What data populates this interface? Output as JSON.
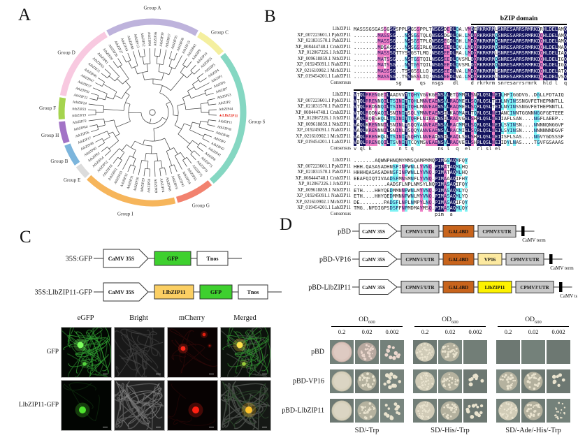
{
  "panels": {
    "a_label": "A",
    "b_label": "B",
    "c_label": "C",
    "d_label": "D"
  },
  "tree": {
    "highlight_leaf": "LlbZIP11",
    "highlight_color": "#e8291c",
    "groups": [
      {
        "name": "Group A",
        "color": "#beb3dc",
        "leaves": [
          "AtbZIP27",
          "AtbZIP14",
          "AtbZIP40",
          "AtbZIP13",
          "AtbZIP12",
          "AtbZIP66",
          "AtbZIP36",
          "AtbZIP39",
          "AtbZIP37",
          "AtbZIP35",
          "AtbZIP38",
          "AtbZIP15"
        ]
      },
      {
        "name": "Group C",
        "color": "#f4ef9f",
        "leaves": [
          "AtbZIP63",
          "AtbZIP9",
          "AtbZIP10",
          "AtbZIP25"
        ]
      },
      {
        "name": "Group S",
        "color": "#85d7c2",
        "leaves": [
          "AtbZIP5",
          "AtbZIP4",
          "AtbZIP1",
          "AtbZIP6",
          "AtbZIP7",
          "AtbZIP53",
          "AtbZIP2",
          "AtbZIP44",
          "LlbZIP11",
          "AtbZIP11",
          "AtbZIP78",
          "AtbZIP48",
          "AtbZIP3",
          "AtbZIP42",
          "AtbZIP43",
          "AtbZIP8",
          "AtbZIP73",
          "AtbZIP70"
        ]
      },
      {
        "name": "Group G",
        "color": "#f2826f",
        "leaves": [
          "AtbZIP75",
          "AtbZIP55",
          "AtbZIP54",
          "AtbZIP41",
          "AtbZIP16"
        ]
      },
      {
        "name": "Group I",
        "color": "#f6b55b",
        "leaves": [
          "AtbZIP68",
          "AtbZIP74",
          "AtbZIP69",
          "AtbZIP59",
          "AtbZIP29",
          "AtbZIP30",
          "AtbZIP31",
          "AtbZIP32",
          "AtbZIP33",
          "AtbZIP51",
          "AtbZIP18",
          "AtbZIP52"
        ]
      },
      {
        "name": "Group E",
        "color": "#dcdcdc",
        "leaves": [
          "AtbZIP34",
          "AtbZIP61"
        ]
      },
      {
        "name": "Group B",
        "color": "#7cb5dc",
        "leaves": [
          "AtbZIP60",
          "AtbZIP49",
          "AtbZIP17"
        ]
      },
      {
        "name": "Group H",
        "color": "#a273c6",
        "leaves": [
          "AtbZIP56",
          "AtbZIP64",
          "AtbZIP72"
        ]
      },
      {
        "name": "Group F",
        "color": "#a5d44e",
        "leaves": [
          "AtbZIP19",
          "AtbZIP23",
          "AtbZIP24"
        ]
      },
      {
        "name": "Group D",
        "color": "#f8c9e0",
        "leaves": [
          "AtbZIP22",
          "AtbZIP50",
          "AtbZIP57",
          "AtbZIP47",
          "AtbZIP46",
          "AtbZIP21",
          "AtbZIP65",
          "AtbZIP81",
          "AtbZIP20",
          "AtbZIP26"
        ]
      }
    ]
  },
  "alignment": {
    "domain_label": "bZIP domain",
    "consensus_label": "Consensus",
    "colors": {
      "identity": "#14145f",
      "high": "#ef7fc5",
      "low": "#7df2f4"
    },
    "names": [
      "LlbZIP11",
      "XP_007223601.1 PpbZIP11",
      "XP_021831570.1 PabZIP11",
      "XP_008444748.1 CmbZIP11",
      "XP_012067226.1 JcbZIP11",
      "XP_009618859.1 NtbZIP11",
      "XP_019245091.1 NabZIP11",
      "XP_021610902.1 McbZIP11",
      "XP_019454201.1 LabZIP11"
    ],
    "blocks": [
      {
        "bar": {
          "from": 39,
          "to": 71,
          "label": true
        },
        "seqs": [
          "MASSSGSGASSGSGSPPLSGSSPPLTNSGSDEDLQA.VMDERKRKRMLSNRESARRSRMRKQRHLDELAMQ",
          "........MASSSG...NSSGSTQLQNSGSDGDLQH.LMDQRKRKRMQSNRESARRSRMRKQQHLDELAMQ",
          "........MASSSG...NSSGSTPLQNSGSEGDLQH.LMDQRKRKRMQSNRESARRSRMRKQQHLDELAMQ",
          "........MDSASG...NSSGSIRLQNSGSEEDLQV.LMDQRKRKRMQSNRESARRSRMRKQQHLDELMAQ",
          "........MASSSGTTYSSGSTLMQ.NSGSEEDLRA.LMDQRKRKRMLSNRESARRSRMRKQQHLDELIAQ",
          "........MATSSG...NSTGSTQILNSGSEEDLQVSMLDQRKRKRMQSNRESARRSRMRKQQHLDELIGQ",
          "........MATSSG...NSTGSTQILNSGSEEDLQVSMLDQRKRKRMQSNRESARRSRMRKQQHLDELIGQ",
          "........MASSSG..TSSGSSLLQ.NSGSEEDLVA.LMDQRKRKRMLSNRESARRSRMRKQQHLDELATQ",
          "........MASSSG..TSSGSSLIQ.NSGSEEDLVA.LMDQRKRKRMLSNRESARRSRMRKQQHLDELVSQ"
        ],
        "consensus": "              sg      qs  nsgs   dl    d rkrkrm snresarrsrmrk  hld l  q"
      },
      {
        "bar": {
          "from": 0,
          "to": 20
        },
        "seqs": [
          "VTQLRRENGEILAADVVTTQHYVGVKGENSVLETQMMELSNRLQSLNEILHFIGGDVG..DGLLFDTAIQ",
          "VTQLRRENNQILTSINITTQHLMNVEAENSVLRAQMEELSQRLQSLTEILNYINSSNGVFETHEPNNTLL",
          "VTQLRRDNNQILTSINITTQHLMNVEAENSVLRAQMEELSQRLQSLTEILNYINSSNGVFETHEPNNTLL",
          "VTQLRQDNAQILSNINITSQLYMNVEAENSILKAQMAELTQRLQSLNEIANCINNTGGNNNGGFGETEEE",
          "VAQLRQESHQLLTSINITTQHFLNIEADNSILRAQVGELSHRLQSLNEIIAFLSAN....NGFLAEEP..",
          "VAQLKRENNNILSNINLTSQQYANVEAENSVLRACMMELSQRLQSLNEILSYINSN....NNNNQNGGVF",
          "VAQLKRENNNILSNINLTSQQYANVEAENSVLRACMIELSQRLQSLNEILSYINSN....NNNNNNDGVF",
          "VAQLRRENHQLLTSINITSQHYLNVEADNSILRAQLSELSHRLQSLNEIISFLSAS....NGVYGDSSSF",
          "VDQLRRENQQILTSVNITTCQYMSVEAENSVLRAQVEELSHRLQSLNEIIDYLNAS....TGVFGSAAAS"
        ],
        "consensus": "v ql k         n t q        ns l  q  el  rl sl el"
      },
      {
        "seqs": [
          ".......AQWNPHNQMYMMSQAMPMMQPIMGSAQMFQY",
          "HHH.QASASADHNSFINPWNLLYVNQ.PIMATAQMLHQ",
          "HHHHQASASADHNSFINPWNLLYVNQ.PIMATAQMLHQ",
          "EEAFQIQTIVAADSFMNSMNFLYVNQ.PIMAAAQIFHY",
          "...........AADSFLNPLNMSYLNQPIMASAQIFQY",
          "ETH....HHYQEDMMNNPWNLMYVNQ.PIMASAQMLYQ",
          "ETH....HHYQEDMMNNPWNLMYVNQ.PIMASAQMLYQ",
          "DE........PADSFLNPLNMPYLNQ.PIMASAQIFQY",
          "TMG..NFDIGPSDSFFNPMDMAYMSQ.PIMASAQMLQY"
        ],
        "consensus": "                           pim  a"
      }
    ]
  },
  "localization": {
    "constructs": [
      {
        "label": "35S:GFP",
        "elements": [
          {
            "t": "arrow",
            "text": "CaMV 35S",
            "fill": "#ffffff",
            "w": 64
          },
          {
            "t": "box",
            "text": "GFP",
            "fill": "#3ed02e",
            "w": 52
          },
          {
            "t": "box",
            "text": "Tnos",
            "fill": "#ffffff",
            "w": 44
          }
        ]
      },
      {
        "label": "35S:LlbZIP11-GFP",
        "elements": [
          {
            "t": "arrow",
            "text": "CaMV 35S",
            "fill": "#ffffff",
            "w": 64
          },
          {
            "t": "box",
            "text": "LlbZIP11",
            "fill": "#fbcf63",
            "w": 56
          },
          {
            "t": "box",
            "text": "GFP",
            "fill": "#3ed02e",
            "w": 46
          },
          {
            "t": "box",
            "text": "Tnos",
            "fill": "#ffffff",
            "w": 42
          }
        ]
      }
    ],
    "channel_headers": [
      "eGFP",
      "Bright",
      "mCherry",
      "Merged"
    ],
    "rows": [
      {
        "label": "GFP",
        "tiles": [
          "gfp-network",
          "bright-dim",
          "mcherry-spots",
          "merged-network"
        ]
      },
      {
        "label": "LlbZIP11-GFP",
        "tiles": [
          "gfp-nucleus",
          "bright-cells",
          "mcherry-nucleus",
          "merged-nucleus"
        ]
      }
    ]
  },
  "activation": {
    "constructs": [
      {
        "label": "pBD",
        "elements": [
          {
            "t": "arrow",
            "text": "CaMV 35S",
            "fill": "#ffffff",
            "w": 54
          },
          {
            "t": "box",
            "text": "CPMV5'UTR",
            "fill": "#c8c8c8",
            "w": 54
          },
          {
            "t": "box",
            "text": "GAL4BD",
            "fill": "#c8641c",
            "w": 44
          },
          {
            "t": "box",
            "text": "CPMV3'UTR",
            "fill": "#c8c8c8",
            "w": 54
          },
          {
            "t": "term",
            "text": "CaMV term"
          }
        ]
      },
      {
        "label": "pBD-VP16",
        "elements": [
          {
            "t": "arrow",
            "text": "CaMV 35S",
            "fill": "#ffffff",
            "w": 54
          },
          {
            "t": "box",
            "text": "CPMV5'UTR",
            "fill": "#c8c8c8",
            "w": 54
          },
          {
            "t": "box",
            "text": "GAL4BD",
            "fill": "#c8641c",
            "w": 44
          },
          {
            "t": "box",
            "text": "VP16",
            "fill": "#fce9a0",
            "w": 34
          },
          {
            "t": "box",
            "text": "CPMV3'UTR",
            "fill": "#c8c8c8",
            "w": 54
          },
          {
            "t": "term",
            "text": "CaMV term"
          }
        ]
      },
      {
        "label": "pBD-LlbZIP11",
        "elements": [
          {
            "t": "arrow",
            "text": "CaMV 35S",
            "fill": "#ffffff",
            "w": 54
          },
          {
            "t": "box",
            "text": "CPMV5'UTR",
            "fill": "#c8c8c8",
            "w": 54
          },
          {
            "t": "box",
            "text": "GAL4BD",
            "fill": "#c8641c",
            "w": 44
          },
          {
            "t": "box",
            "text": "LlbZIP11",
            "fill": "#fdf200",
            "w": 48
          },
          {
            "t": "box",
            "text": "CPMV3'UTR",
            "fill": "#c8c8c8",
            "w": 54
          },
          {
            "t": "term",
            "text": "CaMV term"
          }
        ]
      }
    ],
    "od_label": "OD",
    "od_sub": "600",
    "dilutions": [
      "0.2",
      "0.02",
      "0.002"
    ],
    "row_labels": [
      "pBD",
      "pBD-VP16",
      "pBD-LlbZIP11"
    ],
    "plates": [
      {
        "medium": "SD/-Trp",
        "row_tints": [
          "pink",
          null,
          null
        ],
        "growth": [
          [
            "lawn",
            "colonies",
            "scattered"
          ],
          [
            "lawn",
            "colonies",
            "scattered"
          ],
          [
            "lawn",
            "colonies",
            "scattered"
          ]
        ]
      },
      {
        "medium": "SD/-His/-Trp",
        "row_tints": [
          null,
          null,
          null
        ],
        "growth": [
          [
            "colonies-dense",
            "colonies",
            "none"
          ],
          [
            "colonies-dense",
            "colonies",
            "scattered-few"
          ],
          [
            "colonies-dense",
            "colonies",
            "scattered"
          ]
        ]
      },
      {
        "medium": "SD/-Ade/-His/-Trp",
        "row_tints": [
          null,
          null,
          null
        ],
        "growth": [
          [
            "none",
            "none",
            "none"
          ],
          [
            "colonies",
            "colonies",
            "scattered-few"
          ],
          [
            "colonies-dense",
            "colonies",
            "scattered-small"
          ]
        ]
      }
    ]
  }
}
